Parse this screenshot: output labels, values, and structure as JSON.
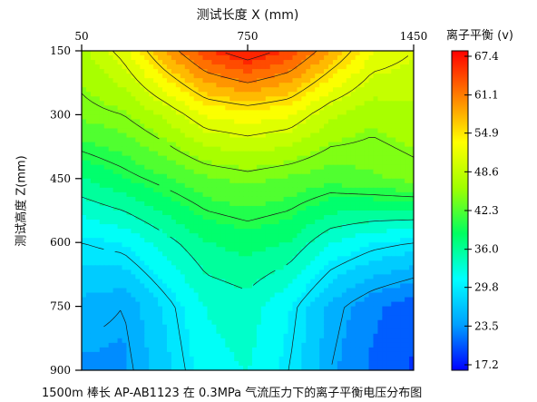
{
  "chart_data": {
    "type": "heatmap",
    "subtype": "filled-contour",
    "title": "1500m  棒长 AP-AB1123 在 0.3MPa 气流压力下的离子平衡电压分布图",
    "xlabel": "测试长度 X (mm)",
    "ylabel": "测试高度 Z(mm)",
    "x_axis_position": "top",
    "xlim": [
      50,
      1450
    ],
    "ylim": [
      150,
      900
    ],
    "y_inverted": true,
    "x_ticks": [
      50,
      750,
      1450
    ],
    "x_tick_labels": [
      "50",
      "750",
      "1450"
    ],
    "y_ticks": [
      150,
      300,
      450,
      600,
      750,
      900
    ],
    "y_tick_labels": [
      "150",
      "300",
      "450",
      "600",
      "750",
      "900"
    ],
    "colorbar": {
      "title": "离子平衡 (v)",
      "min": 17.2,
      "max": 67.4,
      "ticks": [
        67.4,
        61.1,
        54.9,
        48.6,
        42.3,
        36.0,
        29.8,
        23.5,
        17.2
      ],
      "tick_labels": [
        "67.4",
        "61.1",
        "54.9",
        "48.6",
        "42.3",
        "36.0",
        "29.8",
        "23.5",
        "17.2"
      ],
      "colormap": [
        "#0000ff",
        "#00a0ff",
        "#00ffff",
        "#00ff60",
        "#a0ff00",
        "#ffff00",
        "#ff8000",
        "#ff0000"
      ],
      "position": "right"
    },
    "contour_levels": [
      20,
      25,
      30,
      35,
      40,
      45,
      50,
      55,
      60,
      65
    ],
    "field_samples": {
      "x": [
        50,
        225,
        400,
        575,
        750,
        925,
        1100,
        1275,
        1450
      ],
      "z": [
        150,
        300,
        450,
        600,
        750,
        900
      ],
      "values": [
        [
          47,
          51,
          58,
          64,
          67,
          64,
          58,
          52,
          50
        ],
        [
          44,
          45,
          48,
          52,
          53,
          52,
          48,
          46,
          47
        ],
        [
          37,
          39,
          41,
          43,
          44,
          43,
          42,
          43,
          44
        ],
        [
          30,
          31,
          34,
          37,
          38,
          37,
          33,
          31,
          30
        ],
        [
          26,
          25,
          29,
          33,
          34,
          31,
          26,
          23,
          21
        ],
        [
          24,
          24,
          28,
          32,
          33,
          30,
          25,
          22,
          20
        ]
      ]
    }
  }
}
